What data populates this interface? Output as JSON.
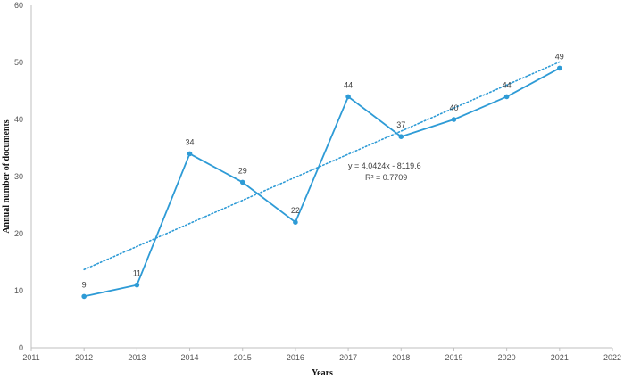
{
  "chart_data": {
    "type": "line",
    "title": "",
    "xlabel": "Years",
    "ylabel": "Annual  number  of documents",
    "xlim": [
      2011,
      2022
    ],
    "ylim": [
      0,
      60
    ],
    "xticks": [
      2011,
      2012,
      2013,
      2014,
      2015,
      2016,
      2017,
      2018,
      2019,
      2020,
      2021,
      2022
    ],
    "yticks": [
      0,
      10,
      20,
      30,
      40,
      50,
      60
    ],
    "grid": false,
    "legend": "none",
    "series": [
      {
        "x": [
          2012,
          2013,
          2014,
          2015,
          2016,
          2017,
          2018,
          2019,
          2020,
          2021
        ],
        "values": [
          9,
          11,
          34,
          29,
          22,
          44,
          37,
          40,
          44,
          49
        ],
        "labels": [
          "9",
          "11",
          "34",
          "29",
          "22",
          "44",
          "37",
          "40",
          "44",
          "49"
        ],
        "color": "#2E9BD6"
      }
    ],
    "trendline": {
      "type": "linear-dotted",
      "slope": 4.0424,
      "intercept": -8119.6,
      "equation": "y = 4.0424x - 8119.6",
      "r_squared": "R² = 0.7709",
      "color": "#2E9BD6"
    }
  }
}
